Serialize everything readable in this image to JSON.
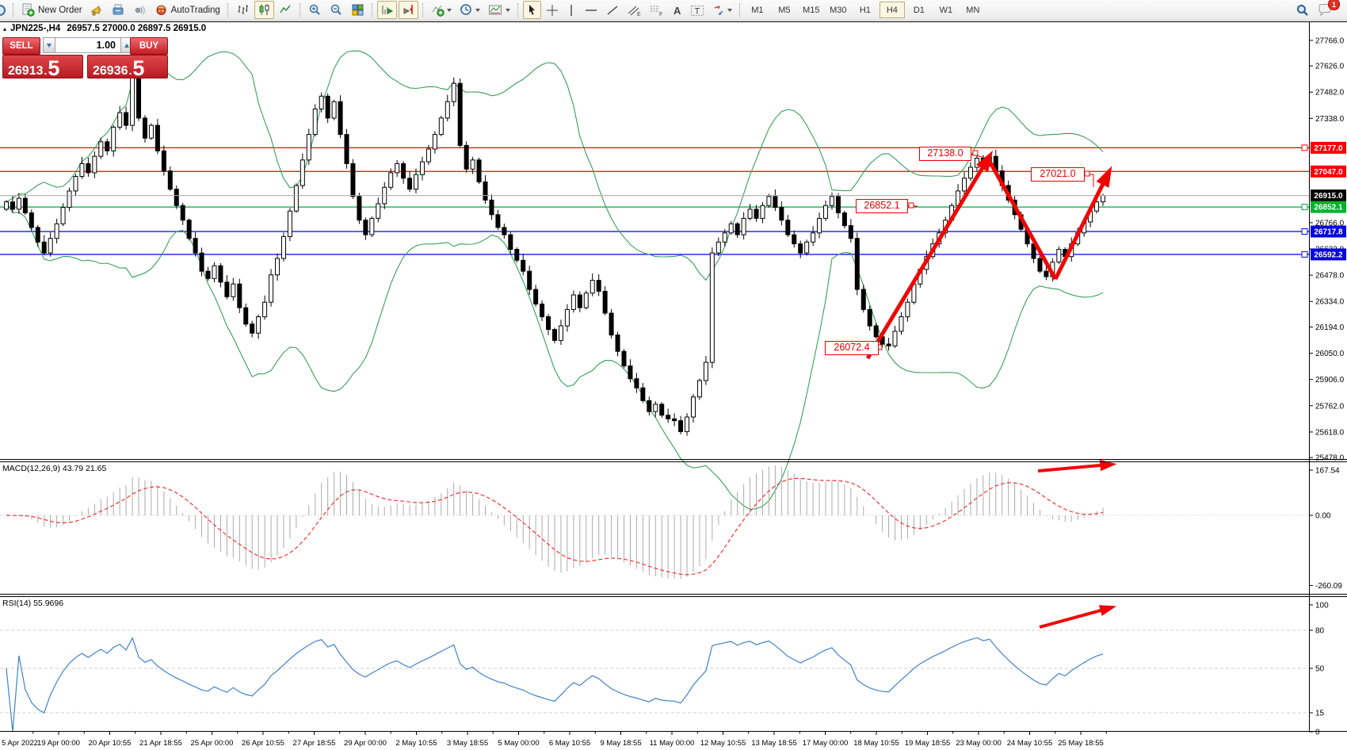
{
  "toolbar": {
    "new_order_label": "New Order",
    "autotrading_label": "AutoTrading",
    "timeframes": [
      "M1",
      "M5",
      "M15",
      "M30",
      "H1",
      "H4",
      "D1",
      "W1",
      "MN"
    ],
    "active_timeframe": "H4",
    "notification_count": "1"
  },
  "chart": {
    "collapse_arrow": "▴",
    "symbol": "JPN225-,H4",
    "ohlc": "26957.5 27000.0 26897.5 26915.0"
  },
  "trade_panel": {
    "sell_label": "SELL",
    "buy_label": "BUY",
    "volume": "1.00",
    "dot": ".",
    "sell_price": "26913",
    "sell_pips": "5",
    "buy_price": "26936",
    "buy_pips": "5"
  },
  "chart_data": {
    "type": "candlestick",
    "symbol": "JPN225-",
    "timeframe": "H4",
    "ohlc_readout": {
      "open": 26957.5,
      "high": 27000.0,
      "low": 26897.5,
      "close": 26915.0
    },
    "ylim": [
      25474,
      27857
    ],
    "closes": [
      26880,
      26840,
      26900,
      26820,
      26740,
      26660,
      26600,
      26680,
      26760,
      26850,
      26940,
      27020,
      27090,
      27040,
      27130,
      27210,
      27160,
      27290,
      27370,
      27300,
      27660,
      27340,
      27230,
      27300,
      27160,
      27050,
      26950,
      26860,
      26780,
      26680,
      26600,
      26500,
      26460,
      26530,
      26440,
      26360,
      26430,
      26300,
      26210,
      26160,
      26250,
      26330,
      26480,
      26570,
      26690,
      26830,
      26970,
      27110,
      27250,
      27390,
      27460,
      27340,
      27430,
      27250,
      27090,
      26910,
      26780,
      26700,
      26790,
      26870,
      26960,
      27040,
      27090,
      27010,
      26950,
      27030,
      27100,
      27170,
      27250,
      27340,
      27430,
      27530,
      27190,
      27060,
      27110,
      26990,
      26890,
      26810,
      26740,
      26700,
      26620,
      26560,
      26500,
      26400,
      26320,
      26250,
      26180,
      26120,
      26200,
      26290,
      26370,
      26300,
      26380,
      26450,
      26390,
      26270,
      26150,
      26060,
      25980,
      25910,
      25860,
      25790,
      25730,
      25770,
      25710,
      25690,
      25680,
      25620,
      25700,
      25810,
      25900,
      26000,
      26600,
      26660,
      26710,
      26760,
      26700,
      26790,
      26840,
      26790,
      26860,
      26910,
      26850,
      26780,
      26700,
      26650,
      26600,
      26660,
      26710,
      26790,
      26860,
      26910,
      26820,
      26750,
      26680,
      26400,
      26290,
      26200,
      26140,
      26100,
      26090,
      26170,
      26250,
      26330,
      26430,
      26510,
      26580,
      26650,
      26710,
      26780,
      26860,
      26940,
      27010,
      27070,
      27120,
      27090,
      27130,
      27050,
      26970,
      26890,
      26810,
      26730,
      26650,
      26570,
      26500,
      26470,
      26550,
      26620,
      26580,
      26650,
      26710,
      26770,
      26830,
      26880,
      26915
    ],
    "y_axis_ticks": [
      27766,
      27626,
      27482,
      27338,
      26766,
      26622,
      26478,
      26334,
      26194,
      26050,
      25906,
      25762,
      25618,
      25478
    ],
    "levels": [
      {
        "value": 27177.0,
        "label": "27177.0",
        "line": "#ff0000",
        "badge": "#fb0000",
        "square": true,
        "w": 1.2
      },
      {
        "value": 27047.0,
        "label": "27047.0",
        "line": "#ff0000",
        "badge": "#fb0000",
        "square": false,
        "w": 1.2
      },
      {
        "value": 26915.0,
        "label": "26915.0",
        "line": "#b4b4b4",
        "badge": "#000000",
        "square": false,
        "w": 1
      },
      {
        "value": 26852.1,
        "label": "26852.1",
        "line": "#00a74a",
        "badge": "#00b22a",
        "square": true,
        "w": 1.2
      },
      {
        "value": 26717.8,
        "label": "26717.8",
        "line": "#0000ff",
        "badge": "#0505e0",
        "square": true,
        "w": 1.2
      },
      {
        "value": 26592.2,
        "label": "26592.2",
        "line": "#0000ff",
        "badge": "#0505e0",
        "square": true,
        "w": 1.2
      }
    ],
    "x_labels": [
      "5 Apr 2022",
      "19 Apr 00:00",
      "20 Apr 10:55",
      "21 Apr 18:55",
      "25 Apr 00:00",
      "26 Apr 10:55",
      "27 Apr 18:55",
      "29 Apr 00:00",
      "2 May 10:55",
      "3 May 18:55",
      "5 May 00:00",
      "6 May 10:55",
      "9 May 18:55",
      "11 May 00:00",
      "12 May 10:55",
      "13 May 18:55",
      "17 May 00:00",
      "18 May 10:55",
      "19 May 18:55",
      "23 May 00:00",
      "24 May 10:55",
      "25 May 18:55"
    ],
    "annotations": [
      {
        "text": "27138.0"
      },
      {
        "text": "27021.0"
      },
      {
        "text": "26852.1"
      },
      {
        "text": "26072.4"
      }
    ],
    "arrow_color": "#f00505",
    "trend_arrows": [
      {
        "pts": [
          [
            1095,
            452
          ],
          [
            1247,
            200
          ]
        ],
        "head": true,
        "w": 5
      },
      {
        "pts": [
          [
            1247,
            200
          ],
          [
            1332,
            352
          ]
        ],
        "head": false,
        "w": 5
      },
      {
        "pts": [
          [
            1332,
            352
          ],
          [
            1398,
            220
          ]
        ],
        "head": true,
        "w": 5
      },
      {
        "pts": [
          [
            1310,
            594
          ],
          [
            1400,
            586
          ]
        ],
        "head": true,
        "w": 4
      },
      {
        "pts": [
          [
            1312,
            791
          ],
          [
            1400,
            767
          ]
        ],
        "head": true,
        "w": 4
      }
    ],
    "bollinger": {
      "period": 20,
      "deviation": 2,
      "color": "#38a05a"
    },
    "macd": {
      "label": "MACD(12,26,9) 43.79 21.65",
      "params": [
        12,
        26,
        9
      ],
      "values": [
        43.79,
        21.65
      ],
      "ylim": [
        -291,
        197
      ],
      "axis": [
        {
          "v": 167.54,
          "t": "167.54"
        },
        {
          "v": 0,
          "t": "0.00"
        },
        {
          "v": -260.09,
          "t": "-260.09"
        }
      ]
    },
    "rsi": {
      "label": "RSI(14) 55.9696",
      "period": 14,
      "value": 55.9696,
      "levels": [
        80,
        50,
        15
      ],
      "axis": [
        {
          "v": 100,
          "t": "100"
        },
        {
          "v": 80,
          "t": "80"
        },
        {
          "v": 50,
          "t": "50"
        },
        {
          "v": 15,
          "t": "15"
        },
        {
          "v": 0,
          "t": "0"
        }
      ]
    }
  }
}
